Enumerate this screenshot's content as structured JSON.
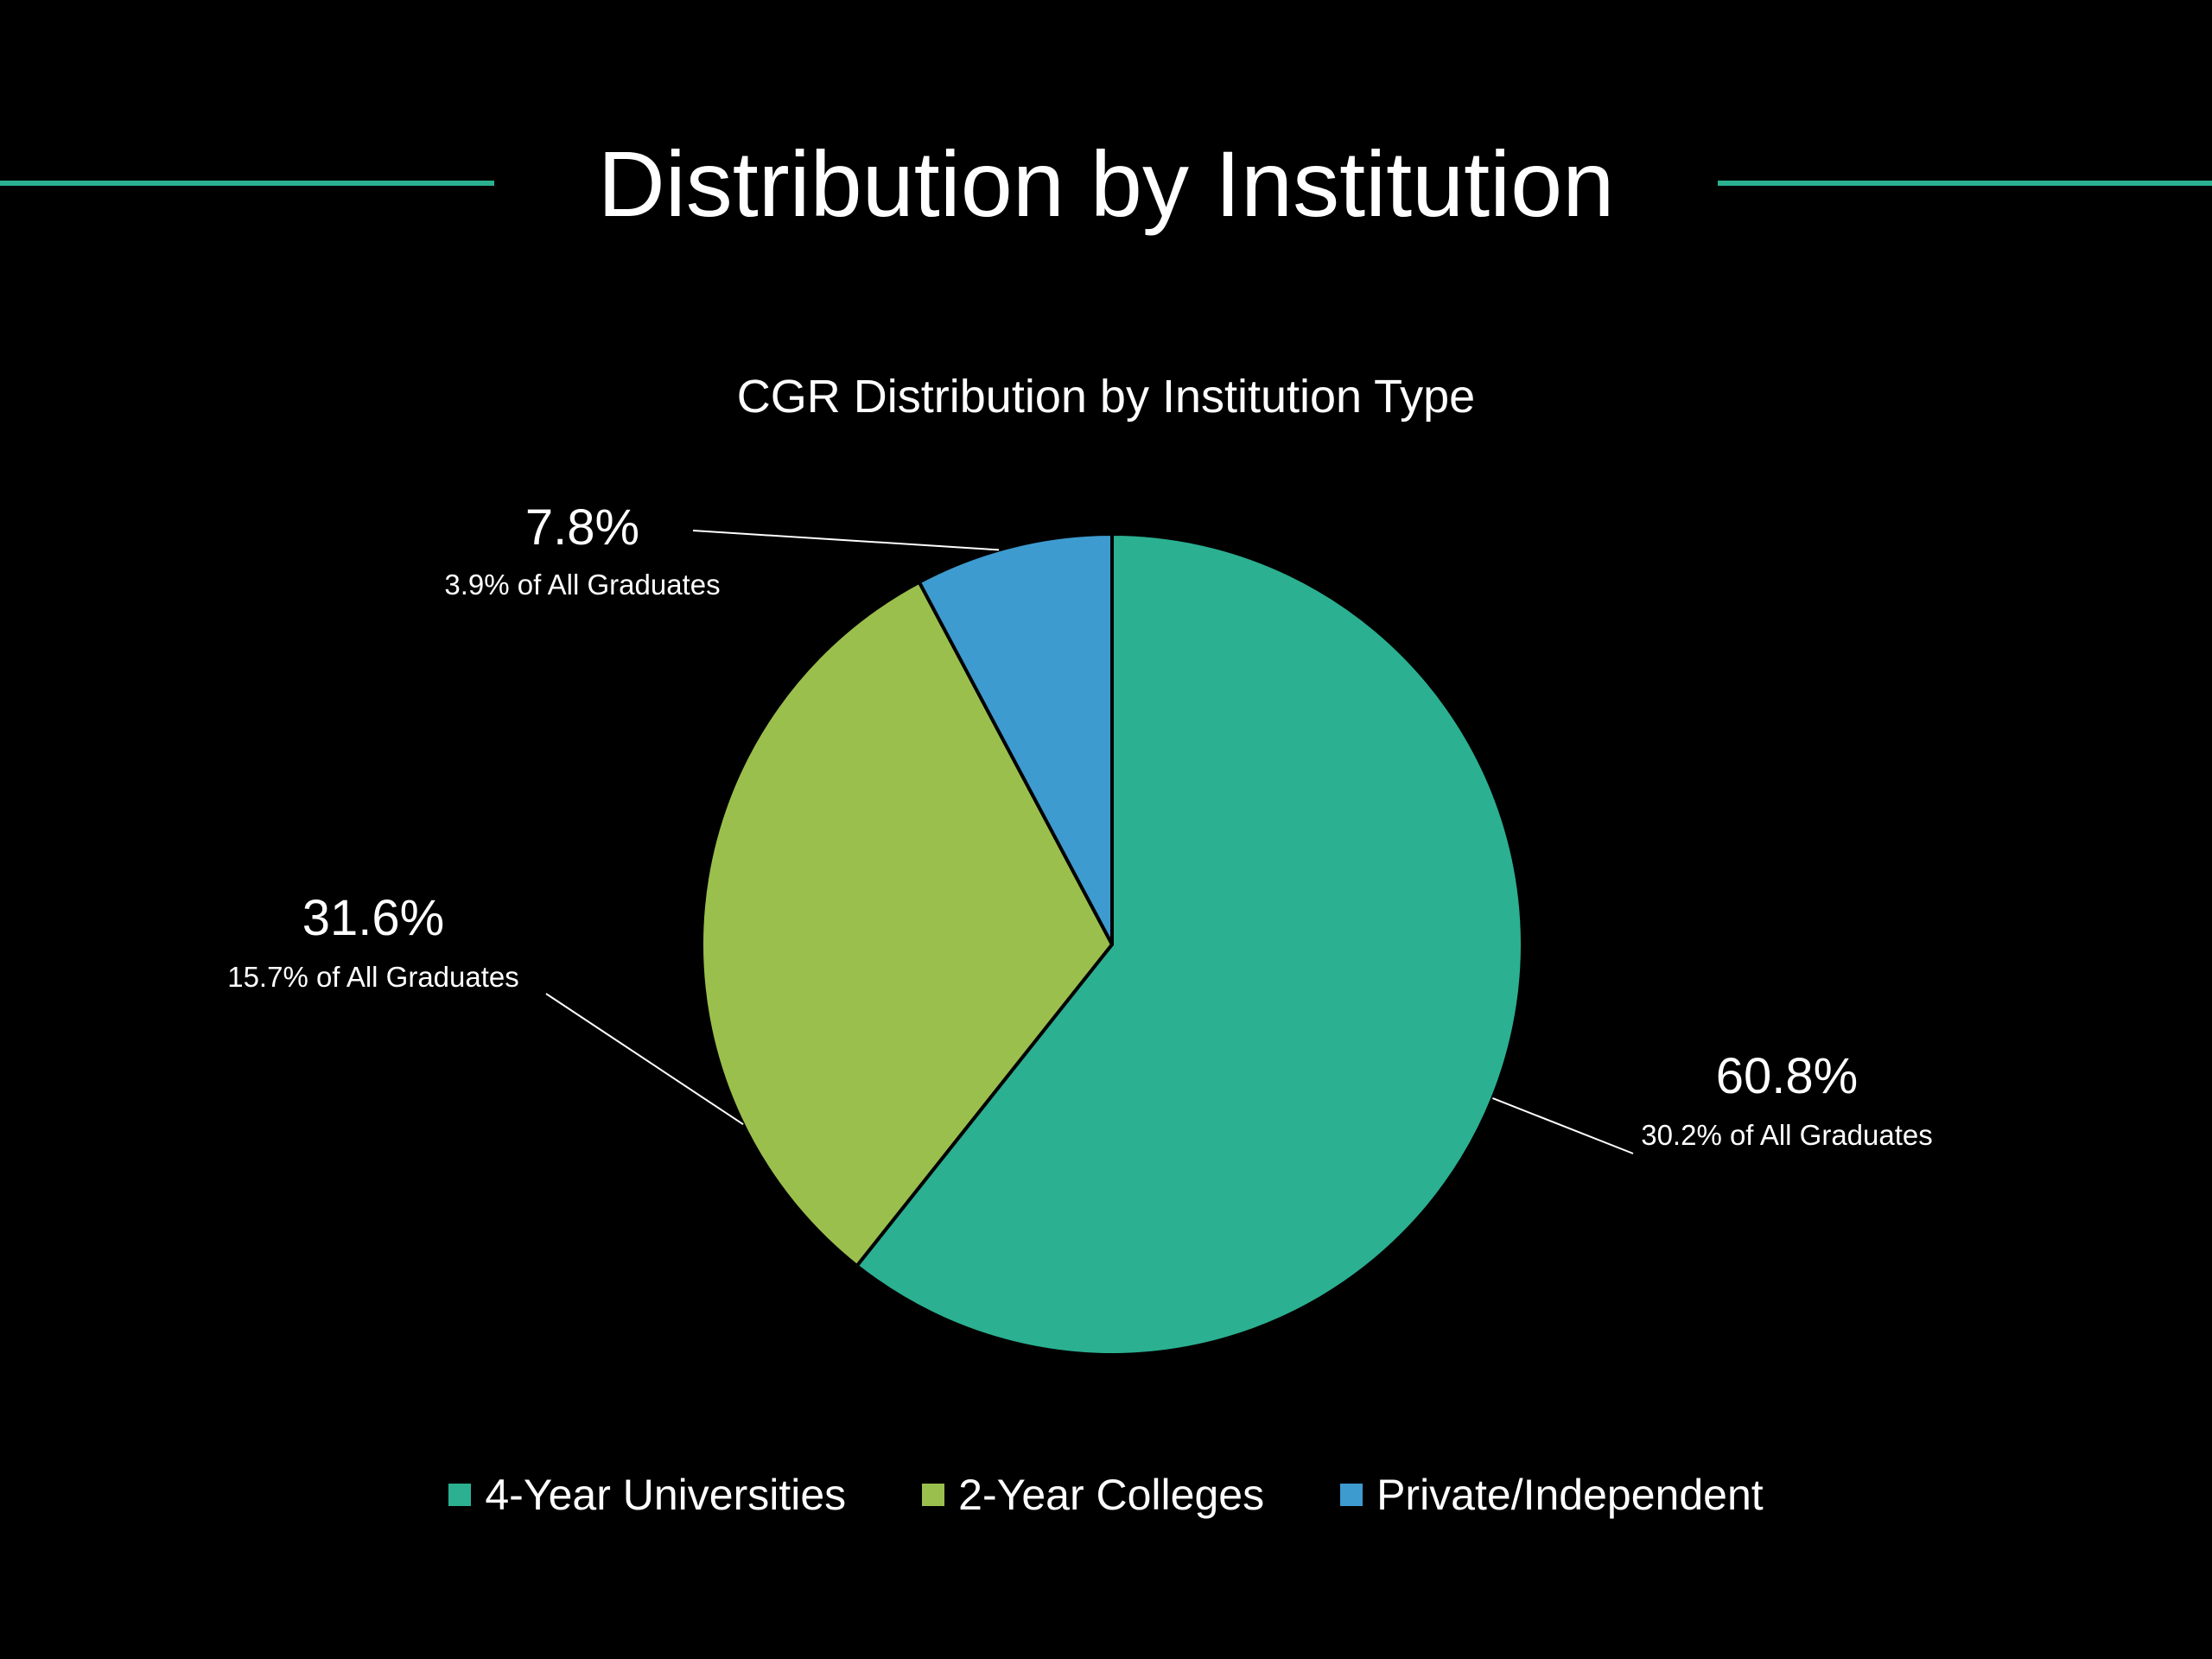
{
  "slide": {
    "title": "Distribution by Institution",
    "accent_color": "#2bb091",
    "background_color": "#000000"
  },
  "chart_data": {
    "type": "pie",
    "title": "CGR Distribution by Institution Type",
    "categories": [
      "4-Year Universities",
      "2-Year Colleges",
      "Private/Independent"
    ],
    "values": [
      60.8,
      31.6,
      7.8
    ],
    "value_labels": [
      "60.8%",
      "31.6%",
      "7.8%"
    ],
    "sub_labels": [
      "30.2% of All Graduates",
      "15.7% of All Graduates",
      "3.9% of All Graduates"
    ],
    "colors": [
      "#2bb091",
      "#9bbf4c",
      "#3d9bcf"
    ],
    "slice_border_color": "#000000",
    "start_angle": "12 o'clock",
    "direction": "clockwise",
    "legend_position": "bottom"
  }
}
